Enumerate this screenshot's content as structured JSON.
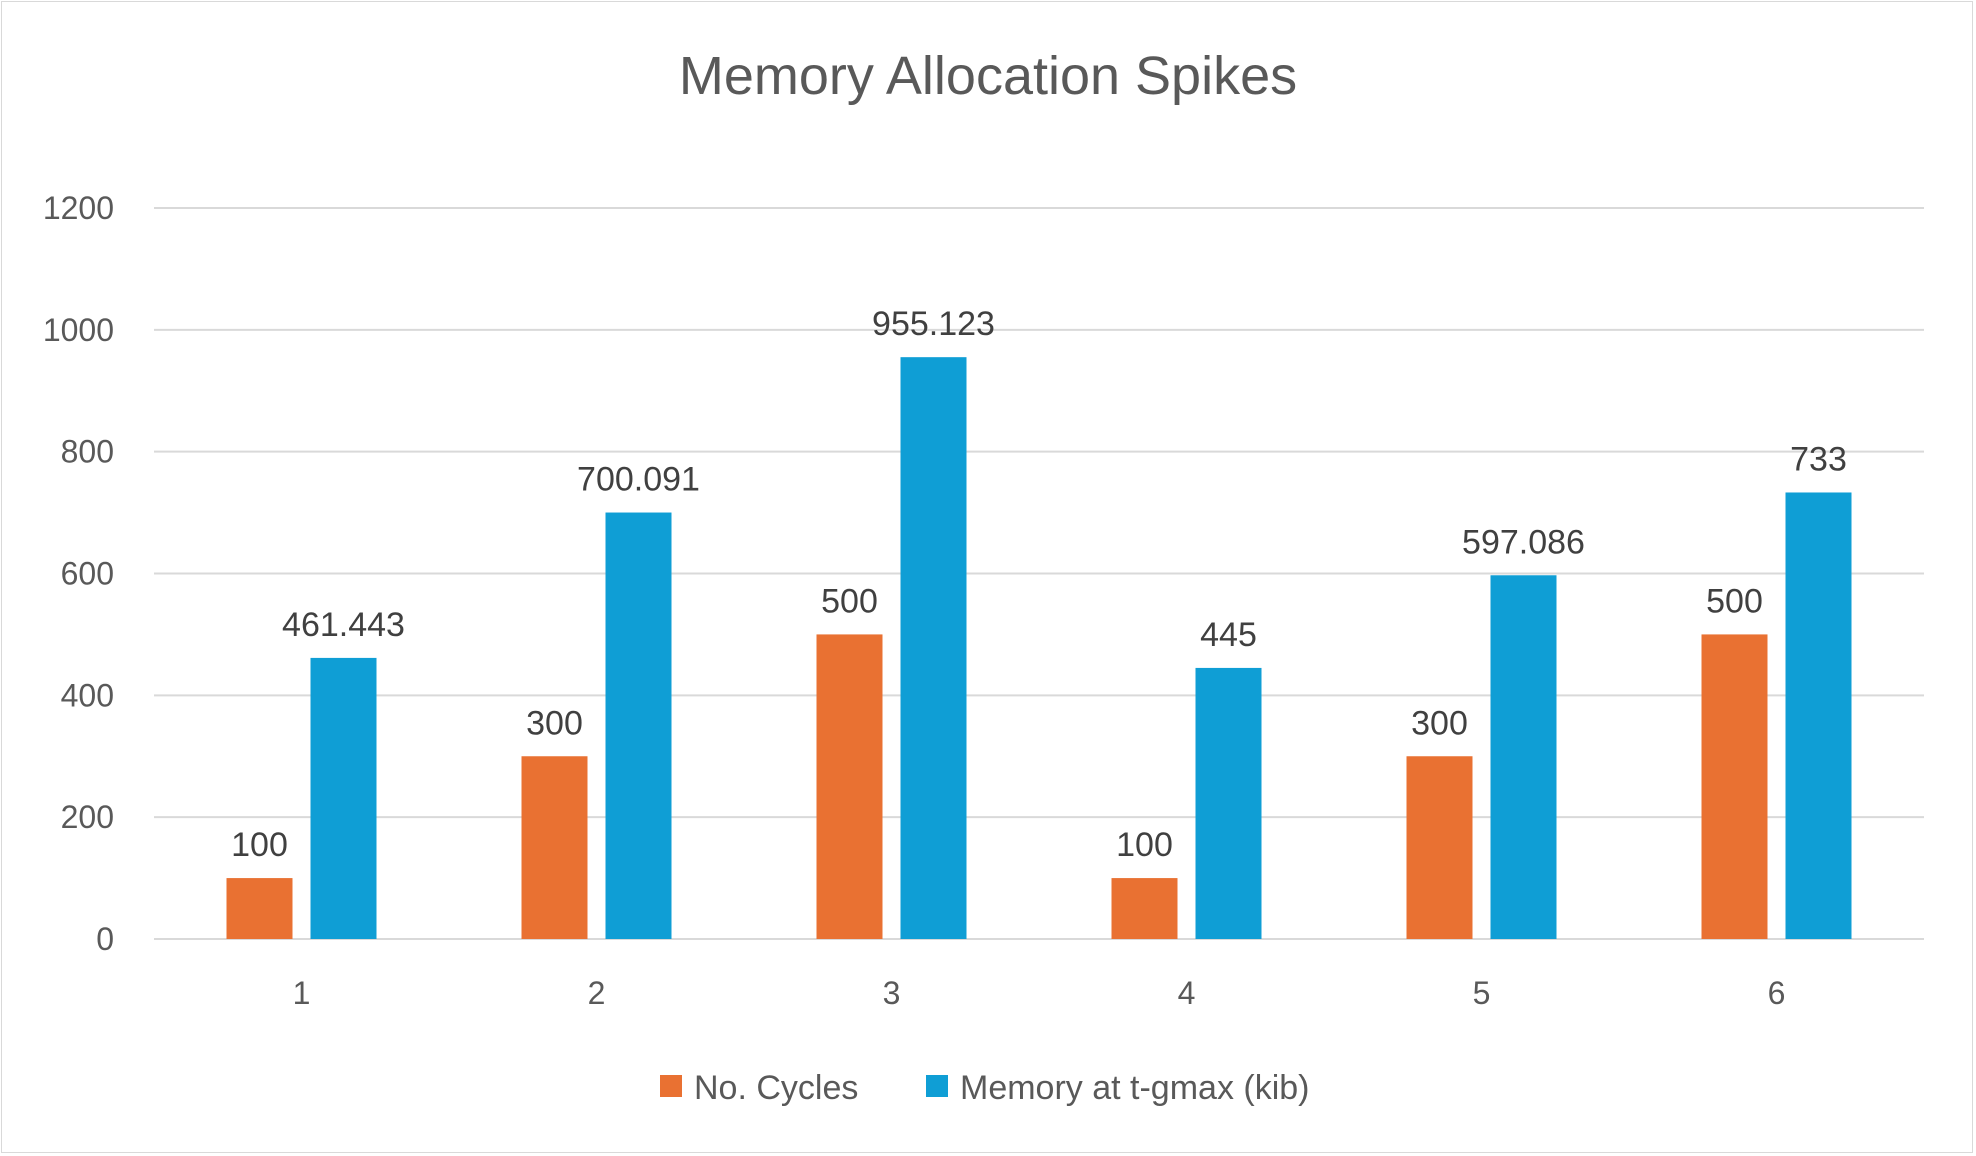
{
  "chart_data": {
    "type": "bar",
    "title": "Memory Allocation Spikes",
    "categories": [
      "1",
      "2",
      "3",
      "4",
      "5",
      "6"
    ],
    "series": [
      {
        "name": "No. Cycles",
        "color": "#E97132",
        "values": [
          100,
          300,
          500,
          100,
          300,
          500
        ],
        "labels": [
          "100",
          "300",
          "500",
          "100",
          "300",
          "500"
        ]
      },
      {
        "name": "Memory at t-gmax (kib)",
        "color": "#0F9ED5",
        "values": [
          461.443,
          700.091,
          955.123,
          445,
          597.086,
          733
        ],
        "labels": [
          "461.443",
          "700.091",
          "955.123",
          "445",
          "597.086",
          "733"
        ]
      }
    ],
    "y_ticks": [
      "0",
      "200",
      "400",
      "600",
      "800",
      "1000",
      "1200"
    ],
    "ylim": [
      0,
      1200
    ],
    "grid": true,
    "legend_position": "bottom"
  }
}
